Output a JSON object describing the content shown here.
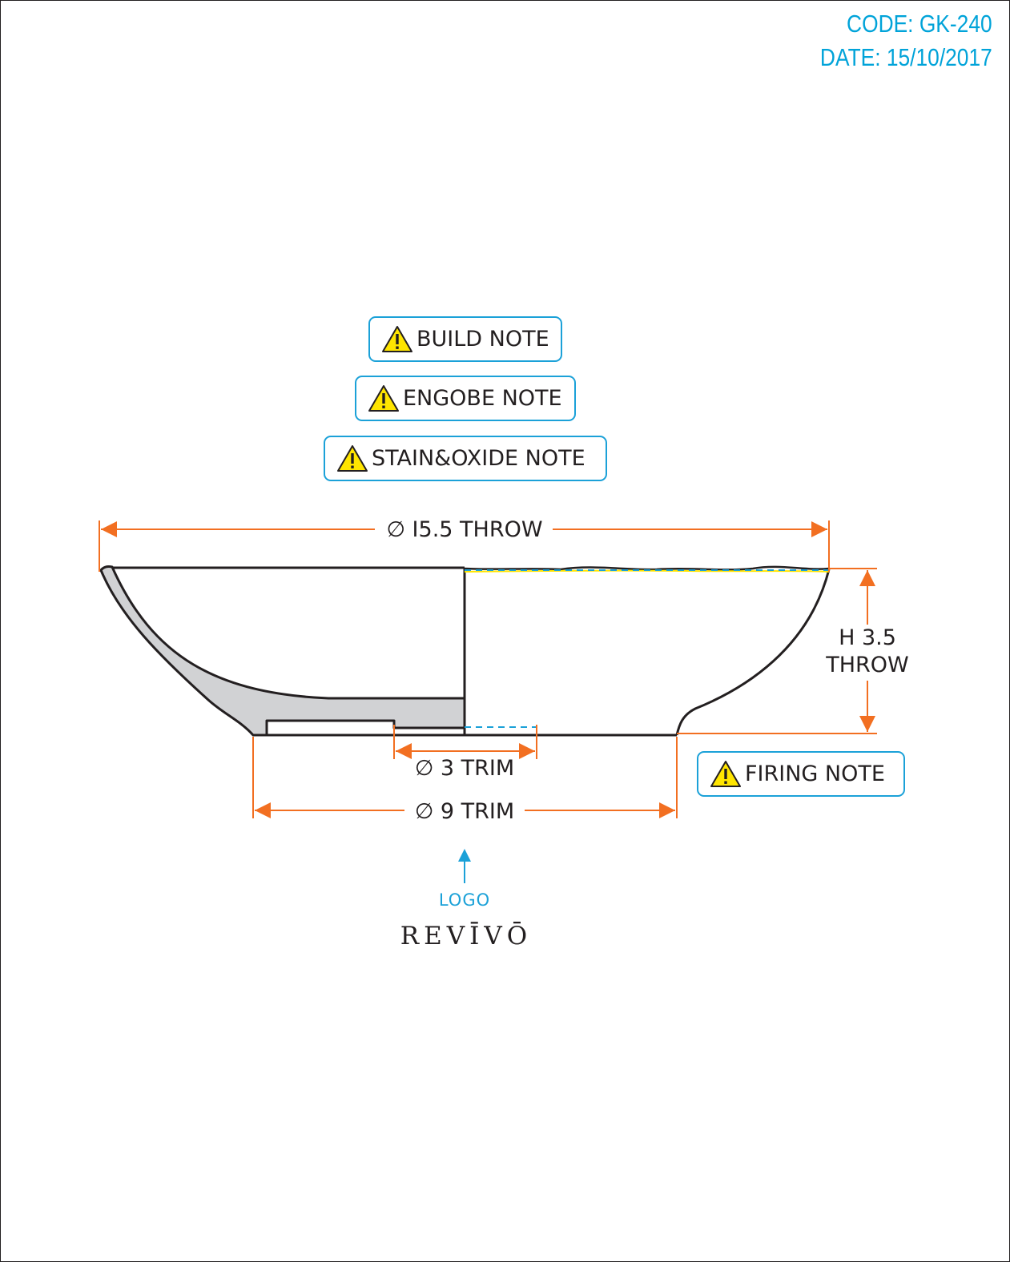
{
  "header": {
    "code": "CODE: GK-240",
    "date": "DATE: 15/10/2017"
  },
  "notes": {
    "build": "BUILD NOTE",
    "engobe": "ENGOBE NOTE",
    "stain_oxide": "STAIN&OXIDE NOTE",
    "firing": "FIRING NOTE"
  },
  "dimensions": {
    "throw_diameter": "∅ I5.5 THROW",
    "height_line1": "H 3.5",
    "height_line2": "THROW",
    "inner_trim": "∅ 3 TRIM",
    "outer_trim": "∅ 9 TRIM"
  },
  "logo": {
    "label": "LOGO",
    "brand": "REVĪVŌ"
  },
  "colors": {
    "dimension_orange": "#f26f21",
    "accent_blue": "#1ba1d8",
    "line_dark": "#231f20",
    "section_fill": "#d1d2d4",
    "warning_yellow": "#ffe500"
  },
  "icons": [
    "warning-triangle-icon",
    "arrow-up-icon"
  ]
}
